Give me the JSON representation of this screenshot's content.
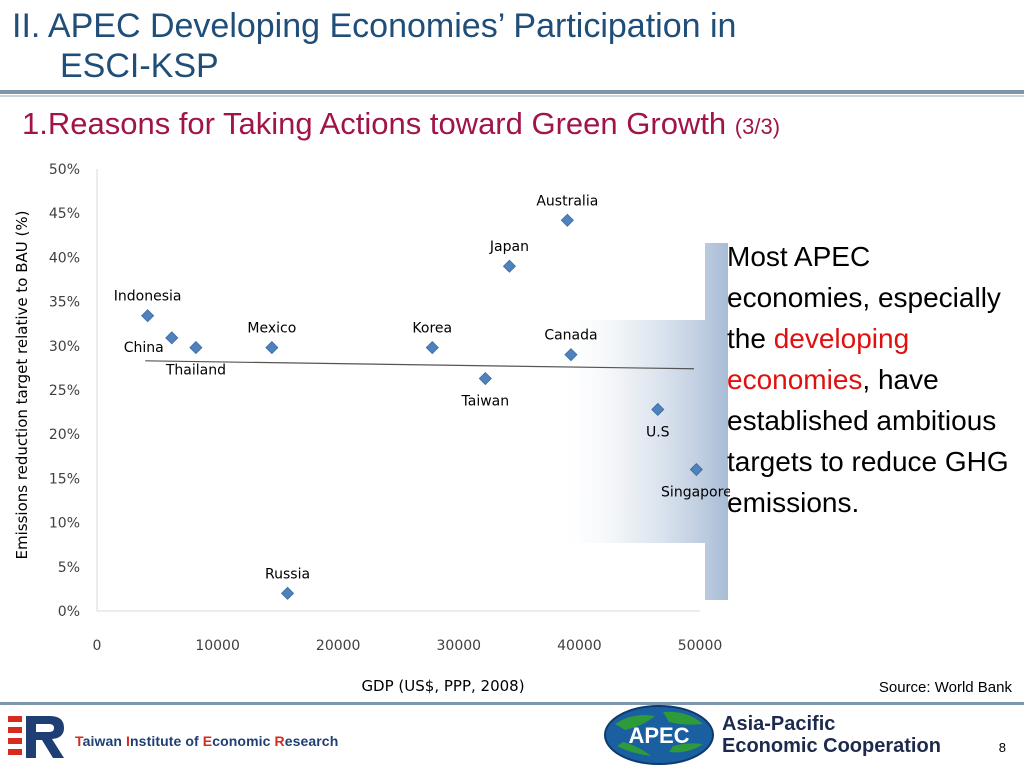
{
  "slide": {
    "title_line1": "II. APEC Developing Economies’ Participation in",
    "title_line2": "ESCI-KSP",
    "subtitle_main": "1.Reasons for Taking Actions toward Green Growth ",
    "subtitle_part": "(3/3)",
    "page_number": "8",
    "source": "Source: World Bank"
  },
  "callout": {
    "text_before": "Most APEC economies, especially the ",
    "highlight": "developing economies",
    "text_after": ", have established ambitious targets to reduce GHG emissions.",
    "highlight_color": "#e01010"
  },
  "footer": {
    "tier": {
      "parts": [
        {
          "text": "T",
          "red": true
        },
        {
          "text": "aiwan ",
          "red": false
        },
        {
          "text": "I",
          "red": true
        },
        {
          "text": "nstitute of ",
          "red": false
        },
        {
          "text": "E",
          "red": true
        },
        {
          "text": "conomic ",
          "red": false
        },
        {
          "text": "R",
          "red": true
        },
        {
          "text": "esearch",
          "red": false
        }
      ]
    },
    "apec": {
      "logo_text": "APEC",
      "name_line1": "Asia-Pacific",
      "name_line2": "Economic Cooperation"
    }
  },
  "chart_data": {
    "type": "scatter",
    "title": "",
    "xlabel": "GDP (US$, PPP, 2008)",
    "ylabel": "Emissions reduction target relative to BAU (%)",
    "xlim": [
      0,
      50000
    ],
    "ylim": [
      0,
      0.5
    ],
    "x_ticks": [
      "0",
      "10000",
      "20000",
      "30000",
      "40000",
      "50000"
    ],
    "y_ticks": [
      "0%",
      "5%",
      "10%",
      "15%",
      "20%",
      "25%",
      "30%",
      "35%",
      "40%",
      "45%",
      "50%"
    ],
    "marker_color": "#4f81bd",
    "trendline": {
      "x": [
        4000,
        49500
      ],
      "y": [
        0.283,
        0.274
      ],
      "color": "#555555"
    },
    "points": [
      {
        "label": "Australia",
        "x": 39000,
        "y": 0.442,
        "label_pos": "above"
      },
      {
        "label": "Japan",
        "x": 34200,
        "y": 0.39,
        "label_pos": "above"
      },
      {
        "label": "Indonesia",
        "x": 4200,
        "y": 0.334,
        "label_pos": "above"
      },
      {
        "label": "China",
        "x": 6200,
        "y": 0.309,
        "label_pos": "left"
      },
      {
        "label": "Thailand",
        "x": 8200,
        "y": 0.298,
        "label_pos": "below"
      },
      {
        "label": "Mexico",
        "x": 14500,
        "y": 0.298,
        "label_pos": "above"
      },
      {
        "label": "Korea",
        "x": 27800,
        "y": 0.298,
        "label_pos": "above"
      },
      {
        "label": "Canada",
        "x": 39300,
        "y": 0.29,
        "label_pos": "above"
      },
      {
        "label": "Taiwan",
        "x": 32200,
        "y": 0.263,
        "label_pos": "below"
      },
      {
        "label": "U.S",
        "x": 46500,
        "y": 0.228,
        "label_pos": "below"
      },
      {
        "label": "Singapore",
        "x": 49700,
        "y": 0.16,
        "label_pos": "below"
      },
      {
        "label": "Russia",
        "x": 15800,
        "y": 0.02,
        "label_pos": "above"
      }
    ]
  }
}
